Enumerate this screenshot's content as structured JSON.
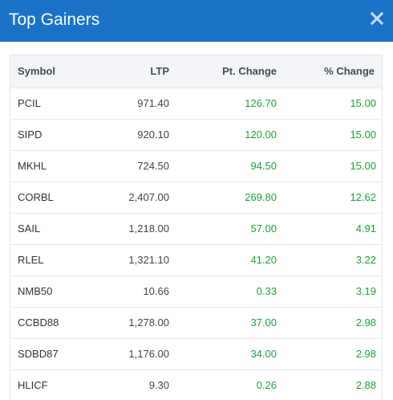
{
  "header": {
    "title": "Top Gainers",
    "close_icon": "close-icon",
    "background_color": "#1a73c9"
  },
  "table": {
    "columns": [
      "Symbol",
      "LTP",
      "Pt. Change",
      "% Change"
    ],
    "rows": [
      {
        "symbol": "PCIL",
        "ltp": "971.40",
        "pt_change": "126.70",
        "pct_change": "15.00"
      },
      {
        "symbol": "SIPD",
        "ltp": "920.10",
        "pt_change": "120.00",
        "pct_change": "15.00"
      },
      {
        "symbol": "MKHL",
        "ltp": "724.50",
        "pt_change": "94.50",
        "pct_change": "15.00"
      },
      {
        "symbol": "CORBL",
        "ltp": "2,407.00",
        "pt_change": "269.80",
        "pct_change": "12.62"
      },
      {
        "symbol": "SAIL",
        "ltp": "1,218.00",
        "pt_change": "57.00",
        "pct_change": "4.91"
      },
      {
        "symbol": "RLEL",
        "ltp": "1,321.10",
        "pt_change": "41.20",
        "pct_change": "3.22"
      },
      {
        "symbol": "NMB50",
        "ltp": "10.66",
        "pt_change": "0.33",
        "pct_change": "3.19"
      },
      {
        "symbol": "CCBD88",
        "ltp": "1,278.00",
        "pt_change": "37.00",
        "pct_change": "2.98"
      },
      {
        "symbol": "SDBD87",
        "ltp": "1,176.00",
        "pt_change": "34.00",
        "pct_change": "2.98"
      },
      {
        "symbol": "HLICF",
        "ltp": "9.30",
        "pt_change": "0.26",
        "pct_change": "2.88"
      }
    ],
    "gain_color": "#1f9e3e"
  }
}
